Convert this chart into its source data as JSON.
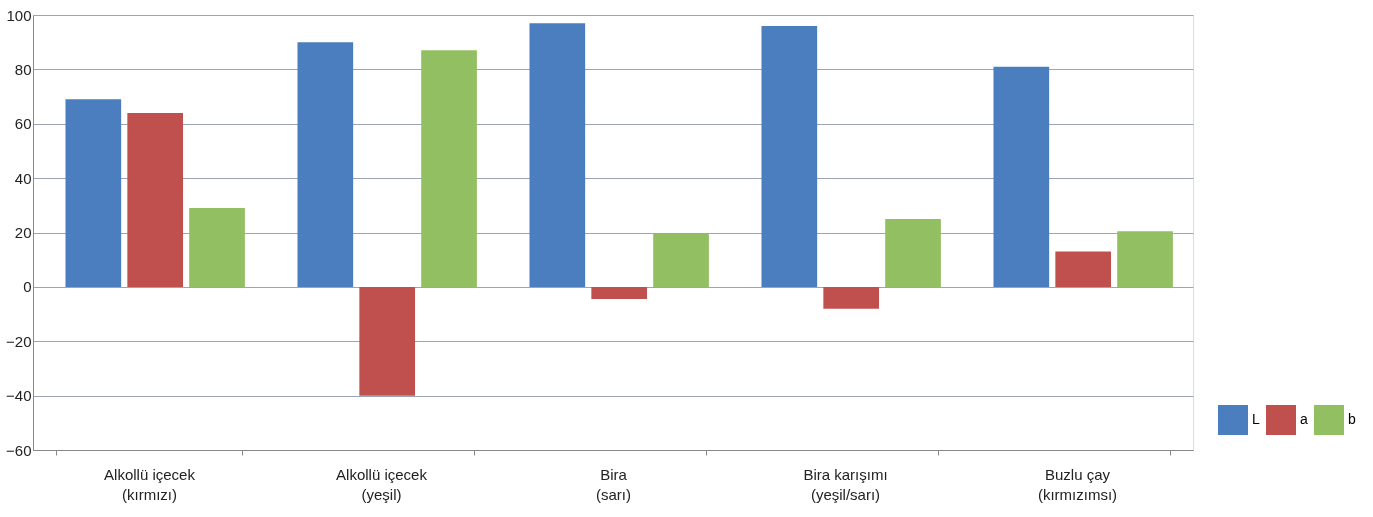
{
  "chart_data": {
    "type": "bar",
    "categories": [
      "Alkollü içecek\n(kırmızı)",
      "Alkollü içecek\n(yeşil)",
      "Bira\n(sarı)",
      "Bira karışımı\n(yeşil/sarı)",
      "Buzlu çay\n(kırmızımsı)"
    ],
    "series": [
      {
        "name": "L",
        "color": "#4a7ebf",
        "values": [
          69,
          90,
          97,
          96,
          81
        ]
      },
      {
        "name": "a",
        "color": "#c0504d",
        "values": [
          64,
          -40,
          -4.5,
          -8,
          13
        ]
      },
      {
        "name": "b",
        "color": "#93bf63",
        "values": [
          29,
          87,
          19.5,
          25,
          20.5
        ]
      }
    ],
    "ylim": [
      -60,
      100
    ],
    "yticks": [
      -60,
      -40,
      -20,
      0,
      20,
      40,
      60,
      80,
      100
    ],
    "grid": "y",
    "legend": "bottom right"
  }
}
